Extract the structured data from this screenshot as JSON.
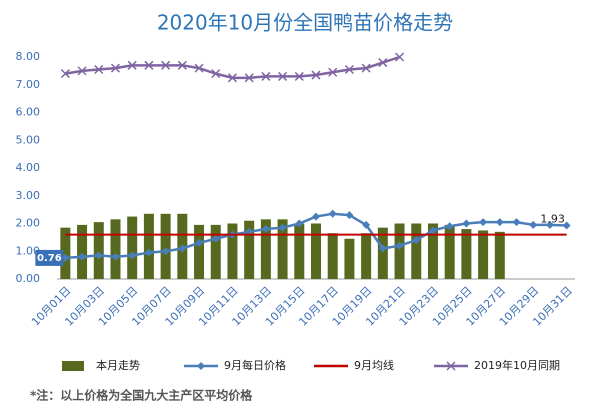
{
  "chart_data": {
    "type": "combo",
    "title": "2020年10月份全国鸭苗价格走势",
    "footnote": "*注：以上价格为全国九大主产区平均价格",
    "categories": [
      "10月01日",
      null,
      "10月03日",
      null,
      "10月05日",
      null,
      "10月07日",
      null,
      "10月09日",
      null,
      "10月11日",
      null,
      "10月13日",
      null,
      "10月15日",
      null,
      "10月17日",
      null,
      "10月19日",
      null,
      "10月21日",
      null,
      "10月23日",
      null,
      "10月25日",
      null,
      "10月27日",
      null,
      "10月29日",
      null,
      "10月31日"
    ],
    "ylim": [
      0,
      8
    ],
    "yticks": [
      {
        "value": 0,
        "label": "0.00"
      },
      {
        "value": 1,
        "label": "1.00"
      },
      {
        "value": 2,
        "label": "2.00"
      },
      {
        "value": 3,
        "label": "3.00"
      },
      {
        "value": 4,
        "label": "4.00"
      },
      {
        "value": 5,
        "label": "5.00"
      },
      {
        "value": 6,
        "label": "6.00"
      },
      {
        "value": 7,
        "label": "7.00"
      },
      {
        "value": 8,
        "label": "8.00"
      }
    ],
    "grid": false,
    "legend": "bottom",
    "series": [
      {
        "name": "本月走势",
        "type": "bar",
        "color": "#56691f",
        "values": [
          1.85,
          1.95,
          2.05,
          2.15,
          2.25,
          2.35,
          2.35,
          2.35,
          1.95,
          1.95,
          2.0,
          2.1,
          2.15,
          2.15,
          2.0,
          2.0,
          1.65,
          1.45,
          1.65,
          1.85,
          2.0,
          2.0,
          2.0,
          1.95,
          1.8,
          1.75,
          1.7,
          null,
          null,
          null,
          null
        ]
      },
      {
        "name": "9月每日价格",
        "type": "line",
        "marker": "diamond",
        "color": "#4a7ebb",
        "values": [
          0.76,
          0.8,
          0.85,
          0.8,
          0.85,
          0.95,
          1.0,
          1.1,
          1.3,
          1.45,
          1.6,
          1.7,
          1.8,
          1.85,
          2.0,
          2.25,
          2.35,
          2.3,
          1.95,
          1.1,
          1.2,
          1.4,
          1.75,
          1.9,
          2.0,
          2.05,
          2.05,
          2.05,
          1.95,
          1.95,
          1.93
        ],
        "labeled": [
          0,
          30
        ]
      },
      {
        "name": "9月均线",
        "type": "line",
        "marker": "none",
        "color": "#c00000",
        "values": [
          1.6,
          1.6,
          1.6,
          1.6,
          1.6,
          1.6,
          1.6,
          1.6,
          1.6,
          1.6,
          1.6,
          1.6,
          1.6,
          1.6,
          1.6,
          1.6,
          1.6,
          1.6,
          1.6,
          1.6,
          1.6,
          1.6,
          1.6,
          1.6,
          1.6,
          1.6,
          1.6,
          1.6,
          1.6,
          1.6,
          1.6
        ]
      },
      {
        "name": "2019年10月同期",
        "type": "line",
        "marker": "x",
        "color": "#8064a2",
        "values": [
          7.4,
          7.5,
          7.55,
          7.6,
          7.7,
          7.7,
          7.7,
          7.7,
          7.6,
          7.4,
          7.25,
          7.25,
          7.3,
          7.3,
          7.3,
          7.35,
          7.45,
          7.55,
          7.6,
          7.8,
          8.0,
          null,
          null,
          null,
          null,
          null,
          null,
          null,
          null,
          null,
          null
        ]
      }
    ]
  }
}
